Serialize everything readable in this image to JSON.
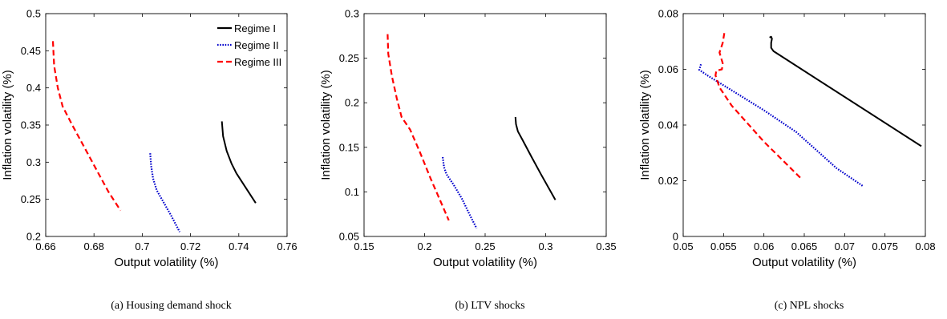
{
  "chart_data": [
    {
      "type": "line",
      "caption": "(a) Housing demand shock",
      "xlabel": "Output volatility (%)",
      "ylabel": "Inflation volatility (%)",
      "xlim": [
        0.66,
        0.76
      ],
      "ylim": [
        0.2,
        0.5
      ],
      "xticks": [
        "0.66",
        "0.68",
        "0.7",
        "0.72",
        "0.74",
        "0.76"
      ],
      "yticks": [
        "0.2",
        "0.25",
        "0.3",
        "0.35",
        "0.4",
        "0.45",
        "0.5"
      ],
      "legend": {
        "position": "top-right",
        "entries": [
          "Regime I",
          "Regime II",
          "Regime III"
        ]
      },
      "series": [
        {
          "name": "Regime I",
          "color": "#000000",
          "style": "solid",
          "points": [
            [
              0.733,
              0.355
            ],
            [
              0.7335,
              0.335
            ],
            [
              0.735,
              0.315
            ],
            [
              0.737,
              0.298
            ],
            [
              0.739,
              0.285
            ],
            [
              0.742,
              0.27
            ],
            [
              0.747,
              0.245
            ]
          ]
        },
        {
          "name": "Regime II",
          "color": "#0000cc",
          "style": "dotted",
          "points": [
            [
              0.7033,
              0.312
            ],
            [
              0.7037,
              0.295
            ],
            [
              0.7045,
              0.278
            ],
            [
              0.706,
              0.262
            ],
            [
              0.709,
              0.245
            ],
            [
              0.712,
              0.228
            ],
            [
              0.7155,
              0.206
            ]
          ]
        },
        {
          "name": "Regime III",
          "color": "#ff0000",
          "style": "dashed",
          "points": [
            [
              0.663,
              0.463
            ],
            [
              0.6635,
              0.43
            ],
            [
              0.665,
              0.4
            ],
            [
              0.667,
              0.375
            ],
            [
              0.671,
              0.35
            ],
            [
              0.676,
              0.32
            ],
            [
              0.681,
              0.29
            ],
            [
              0.686,
              0.26
            ],
            [
              0.691,
              0.235
            ]
          ]
        }
      ]
    },
    {
      "type": "line",
      "caption": "(b) LTV shocks",
      "xlabel": "Output volatility (%)",
      "ylabel": "Inflation volatility (%)",
      "xlim": [
        0.15,
        0.35
      ],
      "ylim": [
        0.05,
        0.3
      ],
      "xticks": [
        "0.15",
        "0.2",
        "0.25",
        "0.3",
        "0.35"
      ],
      "yticks": [
        "0.05",
        "0.1",
        "0.15",
        "0.2",
        "0.25",
        "0.3"
      ],
      "series": [
        {
          "name": "Regime I",
          "color": "#000000",
          "style": "solid",
          "points": [
            [
              0.275,
              0.184
            ],
            [
              0.2755,
              0.176
            ],
            [
              0.277,
              0.168
            ],
            [
              0.281,
              0.158
            ],
            [
              0.288,
              0.14
            ],
            [
              0.296,
              0.12
            ],
            [
              0.308,
              0.091
            ]
          ]
        },
        {
          "name": "Regime II",
          "color": "#0000cc",
          "style": "dotted",
          "points": [
            [
              0.215,
              0.139
            ],
            [
              0.216,
              0.128
            ],
            [
              0.218,
              0.12
            ],
            [
              0.224,
              0.108
            ],
            [
              0.231,
              0.092
            ],
            [
              0.237,
              0.075
            ],
            [
              0.243,
              0.059
            ]
          ]
        },
        {
          "name": "Regime III",
          "color": "#ff0000",
          "style": "dashed",
          "points": [
            [
              0.1695,
              0.277
            ],
            [
              0.17,
              0.255
            ],
            [
              0.173,
              0.23
            ],
            [
              0.177,
              0.205
            ],
            [
              0.181,
              0.184
            ],
            [
              0.188,
              0.17
            ],
            [
              0.196,
              0.145
            ],
            [
              0.205,
              0.115
            ],
            [
              0.213,
              0.09
            ],
            [
              0.22,
              0.068
            ]
          ]
        }
      ]
    },
    {
      "type": "line",
      "caption": "(c) NPL shocks",
      "xlabel": "Output volatility (%)",
      "ylabel": "Inflation volatility (%)",
      "xlim": [
        0.05,
        0.08
      ],
      "ylim": [
        0,
        0.08
      ],
      "xticks": [
        "0.05",
        "0.055",
        "0.06",
        "0.065",
        "0.07",
        "0.075",
        "0.08"
      ],
      "yticks": [
        "0",
        "0.02",
        "0.04",
        "0.06",
        "0.08"
      ],
      "series": [
        {
          "name": "Regime I",
          "color": "#000000",
          "style": "solid",
          "points": [
            [
              0.0607,
              0.0714
            ],
            [
              0.0609,
              0.0717
            ],
            [
              0.061,
              0.071
            ],
            [
              0.0609,
              0.0695
            ],
            [
              0.0609,
              0.0677
            ],
            [
              0.0612,
              0.0665
            ],
            [
              0.0795,
              0.0324
            ]
          ]
        },
        {
          "name": "Regime II",
          "color": "#0000cc",
          "style": "dotted",
          "points": [
            [
              0.0522,
              0.0618
            ],
            [
              0.0521,
              0.0608
            ],
            [
              0.052,
              0.0598
            ],
            [
              0.053,
              0.0578
            ],
            [
              0.056,
              0.0525
            ],
            [
              0.06,
              0.0453
            ],
            [
              0.064,
              0.0375
            ],
            [
              0.069,
              0.0245
            ],
            [
              0.0723,
              0.018
            ]
          ]
        },
        {
          "name": "Regime III",
          "color": "#ff0000",
          "style": "dashed",
          "points": [
            [
              0.0551,
              0.073
            ],
            [
              0.0549,
              0.0695
            ],
            [
              0.0545,
              0.066
            ],
            [
              0.0549,
              0.0622
            ],
            [
              0.0548,
              0.06
            ],
            [
              0.0541,
              0.0595
            ],
            [
              0.054,
              0.0578
            ],
            [
              0.0545,
              0.0535
            ],
            [
              0.056,
              0.047
            ],
            [
              0.06,
              0.034
            ],
            [
              0.0645,
              0.0211
            ]
          ]
        }
      ]
    }
  ]
}
